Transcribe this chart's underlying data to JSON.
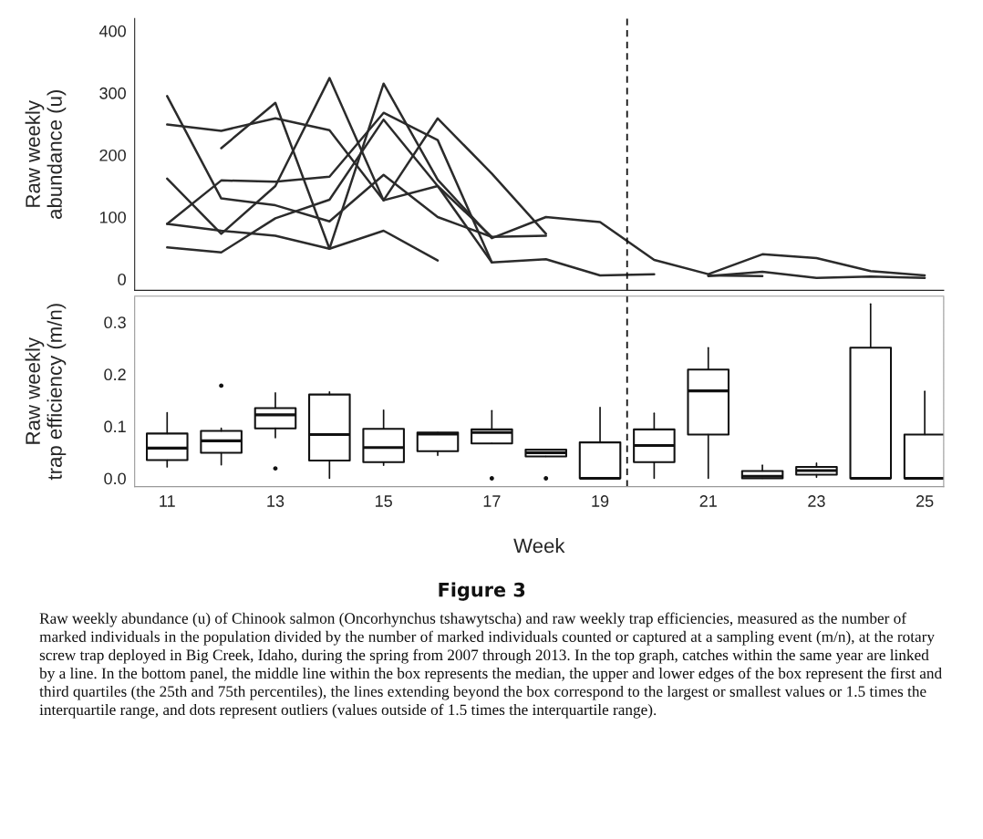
{
  "chart_data": [
    {
      "type": "line",
      "ylabel": "Raw weekly\nabundance (u)",
      "x": [
        11,
        12,
        13,
        14,
        15,
        16,
        17,
        18,
        19,
        20,
        21,
        22,
        23,
        24,
        25
      ],
      "xlim": [
        10.4,
        25.35
      ],
      "ylim": [
        -18,
        420
      ],
      "yticks": [
        0,
        100,
        200,
        300,
        400
      ],
      "tick_labels": "y",
      "grid": false,
      "marker": "none",
      "line_style": "solid",
      "series": [
        {
          "color": "#2b2b2b",
          "values": [
            295,
            130,
            119,
            93,
            168,
            100,
            68,
            70,
            null,
            null,
            null,
            null,
            null,
            null,
            null
          ]
        },
        {
          "color": "#2b2b2b",
          "values": [
            249,
            239,
            259,
            240,
            127,
            259,
            170,
            73,
            null,
            null,
            null,
            null,
            null,
            null,
            null
          ]
        },
        {
          "color": "#2b2b2b",
          "values": [
            162,
            73,
            150,
            324,
            127,
            150,
            68,
            null,
            null,
            null,
            null,
            null,
            null,
            null,
            null
          ]
        },
        {
          "color": "#2b2b2b",
          "values": [
            89,
            159,
            157,
            165,
            268,
            224,
            27,
            32,
            6,
            8,
            null,
            null,
            null,
            null,
            null
          ]
        },
        {
          "color": "#2b2b2b",
          "values": [
            89,
            78,
            70,
            49,
            315,
            160,
            66,
            100,
            92,
            31,
            8,
            40,
            34,
            13,
            6
          ]
        },
        {
          "color": "#2b2b2b",
          "values": [
            51,
            43,
            98,
            128,
            257,
            150,
            27,
            null,
            null,
            null,
            null,
            null,
            null,
            null,
            null
          ]
        },
        {
          "color": "#2b2b2b",
          "values": [
            null,
            211,
            284,
            49,
            78,
            30,
            null,
            null,
            null,
            null,
            null,
            null,
            null,
            null,
            null
          ]
        },
        {
          "color": "#2b2b2b",
          "values": [
            null,
            null,
            null,
            null,
            null,
            null,
            null,
            null,
            null,
            null,
            5,
            12,
            2,
            4,
            2
          ]
        },
        {
          "color": "#2b2b2b",
          "values": [
            null,
            null,
            null,
            null,
            null,
            null,
            null,
            null,
            null,
            null,
            6,
            5,
            null,
            null,
            null
          ]
        }
      ],
      "ref_lines": [
        {
          "axis": "x",
          "value": 19.5,
          "color": "#111111",
          "line_style": "dashed"
        }
      ]
    },
    {
      "type": "box",
      "xlabel": "Week",
      "ylabel": "Raw weekly\ntrap efficiency (m/n)",
      "x": [
        11,
        12,
        13,
        14,
        15,
        16,
        17,
        18,
        19,
        20,
        21,
        22,
        23,
        24,
        25
      ],
      "xlim": [
        10.4,
        25.35
      ],
      "xticks": [
        11,
        13,
        15,
        17,
        19,
        21,
        23,
        25
      ],
      "ylim": [
        -0.016,
        0.35
      ],
      "yticks": [
        {
          "value": 0,
          "label": "0.0"
        },
        0.1,
        0.2,
        0.3
      ],
      "grid": false,
      "color": "#111111",
      "boxes": [
        {
          "low": 0.022,
          "q1": 0.035,
          "median": 0.058,
          "q3": 0.086,
          "high": 0.126
        },
        {
          "low": 0.026,
          "q1": 0.049,
          "median": 0.072,
          "q3": 0.091,
          "high": 0.096,
          "outliers": [
            0.178
          ]
        },
        {
          "low": 0.078,
          "q1": 0.096,
          "median": 0.122,
          "q3": 0.135,
          "high": 0.164,
          "outliers": [
            0.019
          ]
        },
        {
          "low": 0.0,
          "q1": 0.034,
          "median": 0.084,
          "q3": 0.161,
          "high": 0.166
        },
        {
          "low": 0.025,
          "q1": 0.031,
          "median": 0.059,
          "q3": 0.095,
          "high": 0.131
        },
        {
          "low": 0.044,
          "q1": 0.052,
          "median": 0.085,
          "q3": 0.088,
          "high": 0.088
        },
        {
          "low": 0.067,
          "q1": 0.067,
          "median": 0.088,
          "q3": 0.094,
          "high": 0.13,
          "outliers": [
            0.0
          ]
        },
        {
          "low": 0.042,
          "q1": 0.042,
          "median": 0.049,
          "q3": 0.055,
          "high": 0.055,
          "outliers": [
            0.0
          ]
        },
        {
          "low": 0.0,
          "q1": 0.0,
          "median": 0.0,
          "q3": 0.069,
          "high": 0.136
        },
        {
          "low": 0.0,
          "q1": 0.031,
          "median": 0.063,
          "q3": 0.094,
          "high": 0.125
        },
        {
          "low": 0.0,
          "q1": 0.084,
          "median": 0.168,
          "q3": 0.209,
          "high": 0.251
        },
        {
          "low": 0.0,
          "q1": 0.0,
          "median": 0.004,
          "q3": 0.014,
          "high": 0.025
        },
        {
          "low": 0.002,
          "q1": 0.007,
          "median": 0.015,
          "q3": 0.022,
          "high": 0.029
        },
        {
          "low": 0.0,
          "q1": 0.0,
          "median": 0.0,
          "q3": 0.251,
          "high": 0.335
        },
        {
          "low": 0.0,
          "q1": 0.0,
          "median": 0.0,
          "q3": 0.084,
          "high": 0.167
        }
      ],
      "ref_lines": [
        {
          "axis": "x",
          "value": 19.5,
          "color": "#111111",
          "line_style": "dashed"
        }
      ],
      "annotations": [
        "Figure 3",
        "Raw weekly abundance (u) of Chinook salmon (Oncorhynchus tshawytscha) and raw weekly trap efficiencies, measured as the number of marked individuals in the population divided by the number of marked individuals counted or captured at a sampling event (m/n), at the rotary screw trap deployed in Big Creek, Idaho, during the spring from 2007 through 2013. In the top graph, catches within the same year are linked by a line. In the bottom panel, the middle line within the box represents the median, the upper and lower edges of the box represent the first and third quartiles (the 25th and 75th percentiles), the lines extending beyond the box correspond to the largest or smallest values or 1.5 times the interquartile range, and dots represent outliers (values outside of 1.5 times the interquartile range)."
      ]
    }
  ]
}
